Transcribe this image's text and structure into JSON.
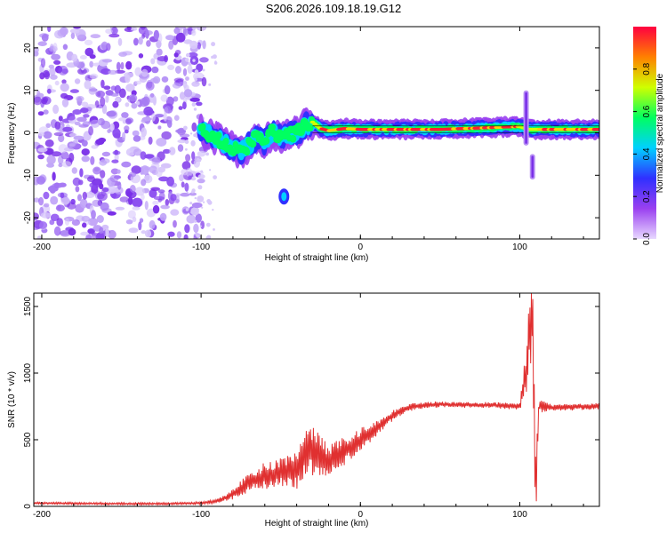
{
  "title": "S206.2026.109.18.19.G12",
  "colors": {
    "line": "#e03030",
    "speckle": "#8a4cf0",
    "speckle_light": "#d8c8fb",
    "frame": "#000000"
  },
  "chart_data": [
    {
      "type": "heatmap",
      "title": "S206.2026.109.18.19.G12",
      "xlabel": "Height of straight line (km)",
      "ylabel": "Frequency (Hz)",
      "xlim": [
        -205,
        150
      ],
      "ylim": [
        -25,
        25
      ],
      "xticks": [
        -200,
        -100,
        0,
        100
      ],
      "xtick_labels": [
        "-200",
        "-100",
        "0",
        "100"
      ],
      "yticks": [
        -20,
        -10,
        0,
        10,
        20
      ],
      "ytick_labels": [
        "-20",
        "-10",
        "0",
        "10",
        "20"
      ],
      "noise_region_x": [
        -205,
        -98
      ],
      "band": {
        "description": "dominant frequency ridge",
        "points": [
          [
            -100,
            0.5
          ],
          [
            -90,
            -1.5
          ],
          [
            -80,
            -3.5
          ],
          [
            -75,
            -4.5
          ],
          [
            -70,
            -3.0
          ],
          [
            -65,
            -1.0
          ],
          [
            -60,
            -2.5
          ],
          [
            -55,
            0.5
          ],
          [
            -50,
            -1.5
          ],
          [
            -45,
            -0.5
          ],
          [
            -40,
            0.0
          ],
          [
            -35,
            1.5
          ],
          [
            -30,
            2.5
          ],
          [
            -25,
            1.0
          ],
          [
            -20,
            0.5
          ],
          [
            -10,
            1.0
          ],
          [
            0,
            0.8
          ],
          [
            20,
            0.8
          ],
          [
            50,
            0.8
          ],
          [
            80,
            1.2
          ],
          [
            100,
            1.5
          ],
          [
            105,
            0.8
          ],
          [
            120,
            0.8
          ],
          [
            150,
            0.8
          ]
        ]
      },
      "features": [
        {
          "type": "blob",
          "x": -48,
          "y": -15
        },
        {
          "type": "vertical_streak",
          "x": 104,
          "y_range": [
            -3,
            10
          ]
        },
        {
          "type": "vertical_streak",
          "x": 108,
          "y_range": [
            -11,
            -5
          ]
        }
      ],
      "colorbar": {
        "label": "Normalized spectral amplitude",
        "range": [
          0.0,
          1.0
        ],
        "ticks": [
          0.0,
          0.2,
          0.4,
          0.6,
          0.8
        ],
        "tick_labels": [
          "0.0",
          "0.2",
          "0.4",
          "0.6",
          "0.8"
        ],
        "stops": [
          "#e8d8ff",
          "#9a40f0",
          "#3030ff",
          "#00d0ff",
          "#00ff60",
          "#d0ff00",
          "#ff8000",
          "#ff0040"
        ]
      }
    },
    {
      "type": "line",
      "xlabel": "Height of straight line (km)",
      "ylabel": "SNR (10 * v/v)",
      "xlim": [
        -205,
        150
      ],
      "ylim": [
        0,
        1600
      ],
      "xticks": [
        -200,
        -100,
        0,
        100
      ],
      "xtick_labels": [
        "-200",
        "-100",
        "0",
        "100"
      ],
      "yticks": [
        0,
        500,
        1000,
        1500
      ],
      "ytick_labels": [
        "0",
        "500",
        "1000",
        "1500"
      ],
      "series": [
        {
          "name": "SNR",
          "x": [
            -205,
            -180,
            -150,
            -120,
            -100,
            -90,
            -80,
            -70,
            -60,
            -50,
            -40,
            -35,
            -30,
            -25,
            -20,
            -10,
            0,
            10,
            20,
            30,
            40,
            50,
            60,
            80,
            100,
            104,
            108,
            110,
            112,
            120,
            150
          ],
          "y": [
            25,
            22,
            20,
            20,
            25,
            40,
            90,
            180,
            230,
            250,
            280,
            380,
            430,
            380,
            340,
            420,
            500,
            580,
            680,
            740,
            760,
            765,
            760,
            760,
            750,
            1000,
            1560,
            100,
            760,
            740,
            750
          ],
          "noise_amplitude": [
            8,
            8,
            8,
            8,
            10,
            15,
            40,
            80,
            100,
            120,
            150,
            180,
            200,
            150,
            120,
            110,
            90,
            60,
            40,
            30,
            25,
            22,
            22,
            22,
            25,
            200,
            400,
            300,
            60,
            25,
            25
          ]
        }
      ]
    }
  ]
}
